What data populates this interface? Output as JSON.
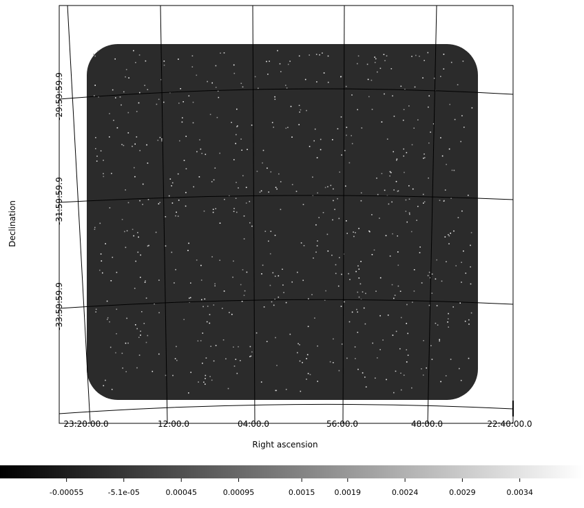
{
  "image": {
    "x_label": "Right ascension",
    "y_label": "Declination",
    "ra_labels": [
      "23:20:00.0",
      "12:00.0",
      "04:00.0",
      "56:00.0",
      "48:00.0",
      "22:40:00.0"
    ],
    "dec_labels": [
      "-29:59:59.9",
      "-31:59:59.9",
      "-33:59:59.9"
    ]
  },
  "colorbar": {
    "xlim": [
      -0.00113,
      0.00396
    ],
    "xticks": [
      -0.00055,
      {
        "value": -5.1e-05,
        "label": "-5.1e-05"
      },
      0.00045,
      0.00095,
      0.0015,
      0.0019,
      0.0024,
      0.0029,
      0.0034
    ]
  }
}
